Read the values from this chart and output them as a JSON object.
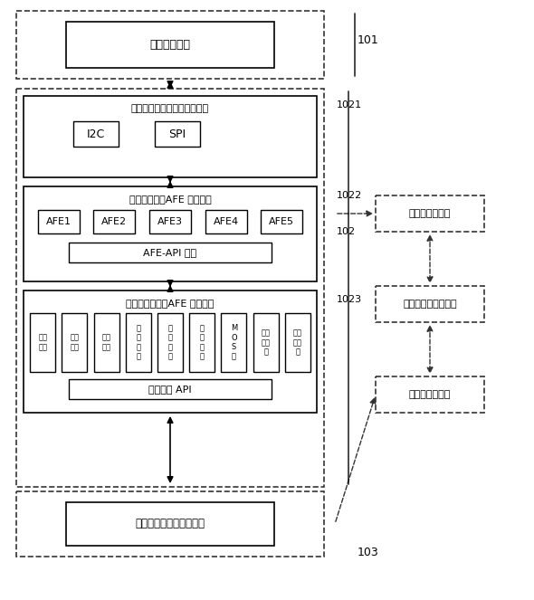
{
  "bg_color": "#ffffff",
  "line_color": "#000000",
  "dashed_color": "#333333",
  "title": "模拟前端电路",
  "label_101": "101",
  "label_102": "102",
  "label_1021": "1021",
  "label_1022": "1022",
  "label_1023": "1023",
  "label_103": "103",
  "comm_module_title": "通信接口模块（通信接口层）",
  "drive_module_title": "驱动库模块（AFE 驱动层）",
  "logic_module_title": "逻辑处理模块（AFE 逻辑层）",
  "control_circuit": "控制电路（业务逻辑层）",
  "afe_api": "AFE-API 接口",
  "data_api": "数据接口 API",
  "i2c": "I2C",
  "spi": "SPI",
  "afe1": "AFE1",
  "afe2": "AFE2",
  "afe3": "AFE3",
  "afe4": "AFE4",
  "afe5": "AFE5",
  "box1": "电压\n采样",
  "box2": "电流\n采样",
  "box3": "温度\n采样",
  "box4": "均\n衡\n控\n制",
  "box5": "断\n线\n检\n测",
  "box6": "短\n路\n处\n理",
  "box7": "M\nO\nS\n控",
  "box8": "休眠\n与映\n醒",
  "box9": "掉线\n自恢\n复",
  "right_box1": "底层驱动开发者",
  "right_box2": "驱动层与业务层接口",
  "right_box3": "业务逻辑开发者"
}
